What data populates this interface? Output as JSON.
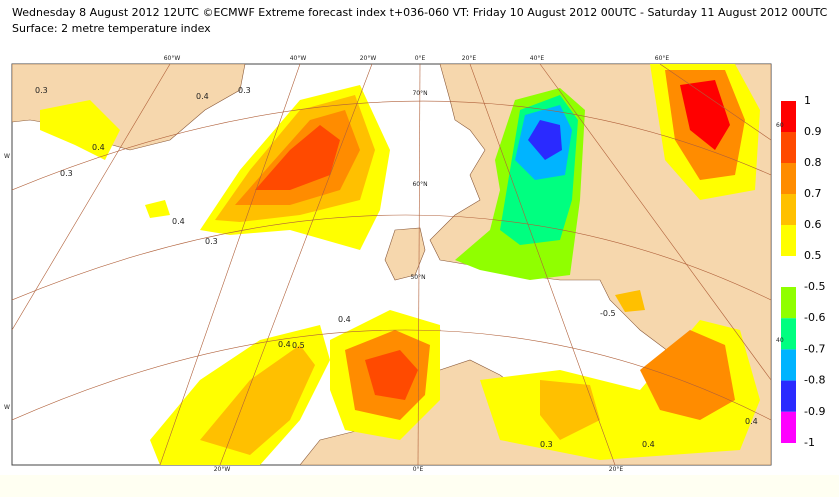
{
  "header": {
    "line1": "Wednesday 8 August 2012 12UTC ©ECMWF Extreme forecast index t+036-060 VT: Friday 10 August 2012 00UTC - Saturday 11 August 2012 00UTC",
    "line2": "Surface: 2 metre temperature index"
  },
  "legend_warm": {
    "levels": [
      1,
      0.9,
      0.8,
      0.7,
      0.6,
      0.5
    ],
    "colors": [
      "#ff0000",
      "#ff4a00",
      "#ff8c00",
      "#ffc000",
      "#ffff00"
    ]
  },
  "legend_cold": {
    "levels": [
      -0.5,
      -0.6,
      -0.7,
      -0.8,
      -0.9,
      -1
    ],
    "colors": [
      "#90ff00",
      "#00ff80",
      "#00b4ff",
      "#2a2aff",
      "#ff00ff"
    ]
  },
  "map_labels": {
    "top": [
      "60°W",
      "40°W",
      "20°W",
      "0°E",
      "20°E",
      "40°E",
      "60°E"
    ],
    "bottom": [
      "20°W",
      "0°E",
      "20°E"
    ],
    "lat": [
      "70°N",
      "60°N",
      "50°N"
    ],
    "right": [
      "60",
      "40"
    ],
    "left": [
      "W",
      "W"
    ],
    "contours": [
      "0.3",
      "0.4",
      "0.4",
      "0.3",
      "0.3",
      "0.4",
      "0.5",
      "0.4",
      "0.3",
      "0.4",
      "-0.5",
      "0.4",
      "0.3",
      "0.4"
    ]
  }
}
